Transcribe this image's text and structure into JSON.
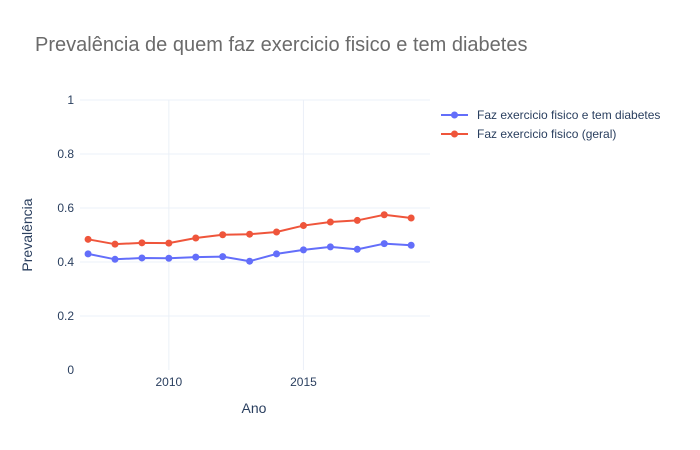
{
  "chart_data": {
    "type": "line",
    "title": "Prevalência de quem faz exercicio fisico e tem diabetes",
    "xlabel": "Ano",
    "ylabel": "Prevalência",
    "x": [
      2007,
      2008,
      2009,
      2010,
      2011,
      2012,
      2013,
      2014,
      2015,
      2016,
      2017,
      2018,
      2019
    ],
    "xlim": [
      2006.7,
      2019.7
    ],
    "ylim": [
      0,
      1
    ],
    "xticks": [
      "2010",
      "2015"
    ],
    "yticks": [
      "0",
      "0.2",
      "0.4",
      "0.6",
      "0.8",
      "1"
    ],
    "grid": true,
    "legend_position": "top-right",
    "series": [
      {
        "name": "Faz exercicio fisico e tem diabetes",
        "color": "#636efa",
        "values": [
          0.43,
          0.41,
          0.415,
          0.414,
          0.418,
          0.42,
          0.403,
          0.43,
          0.445,
          0.456,
          0.447,
          0.468,
          0.462
        ]
      },
      {
        "name": "Faz exercicio fisico (geral)",
        "color": "#ef553b",
        "values": [
          0.484,
          0.466,
          0.471,
          0.47,
          0.489,
          0.501,
          0.503,
          0.511,
          0.535,
          0.548,
          0.554,
          0.575,
          0.563
        ]
      }
    ]
  }
}
